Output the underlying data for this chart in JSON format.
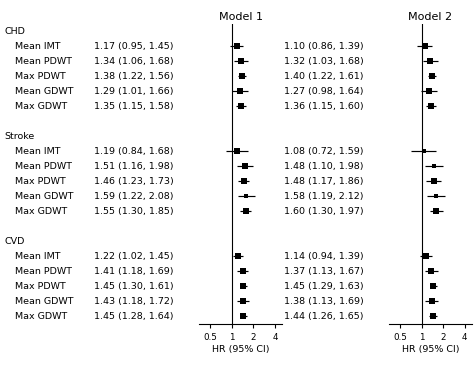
{
  "title_model1": "Model 1",
  "title_model2": "Model 2",
  "groups": [
    "CHD",
    "Stroke",
    "CVD"
  ],
  "row_labels": [
    "Mean IMT",
    "Mean PDWT",
    "Max PDWT",
    "Mean GDWT",
    "Max GDWT"
  ],
  "model1": {
    "CHD": {
      "Mean IMT": {
        "hr": 1.17,
        "lo": 0.95,
        "hi": 1.45,
        "label": "1.17 (0.95, 1.45)"
      },
      "Mean PDWT": {
        "hr": 1.34,
        "lo": 1.06,
        "hi": 1.68,
        "label": "1.34 (1.06, 1.68)"
      },
      "Max PDWT": {
        "hr": 1.38,
        "lo": 1.22,
        "hi": 1.56,
        "label": "1.38 (1.22, 1.56)"
      },
      "Mean GDWT": {
        "hr": 1.29,
        "lo": 1.01,
        "hi": 1.66,
        "label": "1.29 (1.01, 1.66)"
      },
      "Max GDWT": {
        "hr": 1.35,
        "lo": 1.15,
        "hi": 1.58,
        "label": "1.35 (1.15, 1.58)"
      }
    },
    "Stroke": {
      "Mean IMT": {
        "hr": 1.19,
        "lo": 0.84,
        "hi": 1.68,
        "label": "1.19 (0.84, 1.68)"
      },
      "Mean PDWT": {
        "hr": 1.51,
        "lo": 1.16,
        "hi": 1.98,
        "label": "1.51 (1.16, 1.98)"
      },
      "Max PDWT": {
        "hr": 1.46,
        "lo": 1.23,
        "hi": 1.73,
        "label": "1.46 (1.23, 1.73)"
      },
      "Mean GDWT": {
        "hr": 1.59,
        "lo": 1.22,
        "hi": 2.08,
        "label": "1.59 (1.22, 2.08)"
      },
      "Max GDWT": {
        "hr": 1.55,
        "lo": 1.3,
        "hi": 1.85,
        "label": "1.55 (1.30, 1.85)"
      }
    },
    "CVD": {
      "Mean IMT": {
        "hr": 1.22,
        "lo": 1.02,
        "hi": 1.45,
        "label": "1.22 (1.02, 1.45)"
      },
      "Mean PDWT": {
        "hr": 1.41,
        "lo": 1.18,
        "hi": 1.69,
        "label": "1.41 (1.18, 1.69)"
      },
      "Max PDWT": {
        "hr": 1.45,
        "lo": 1.3,
        "hi": 1.61,
        "label": "1.45 (1.30, 1.61)"
      },
      "Mean GDWT": {
        "hr": 1.43,
        "lo": 1.18,
        "hi": 1.72,
        "label": "1.43 (1.18, 1.72)"
      },
      "Max GDWT": {
        "hr": 1.45,
        "lo": 1.28,
        "hi": 1.64,
        "label": "1.45 (1.28, 1.64)"
      }
    }
  },
  "model2": {
    "CHD": {
      "Mean IMT": {
        "hr": 1.1,
        "lo": 0.86,
        "hi": 1.39,
        "label": "1.10 (0.86, 1.39)"
      },
      "Mean PDWT": {
        "hr": 1.32,
        "lo": 1.03,
        "hi": 1.68,
        "label": "1.32 (1.03, 1.68)"
      },
      "Max PDWT": {
        "hr": 1.4,
        "lo": 1.22,
        "hi": 1.61,
        "label": "1.40 (1.22, 1.61)"
      },
      "Mean GDWT": {
        "hr": 1.27,
        "lo": 0.98,
        "hi": 1.64,
        "label": "1.27 (0.98, 1.64)"
      },
      "Max GDWT": {
        "hr": 1.36,
        "lo": 1.15,
        "hi": 1.6,
        "label": "1.36 (1.15, 1.60)"
      }
    },
    "Stroke": {
      "Mean IMT": {
        "hr": 1.08,
        "lo": 0.72,
        "hi": 1.59,
        "label": "1.08 (0.72, 1.59)"
      },
      "Mean PDWT": {
        "hr": 1.48,
        "lo": 1.1,
        "hi": 1.98,
        "label": "1.48 (1.10, 1.98)"
      },
      "Max PDWT": {
        "hr": 1.48,
        "lo": 1.17,
        "hi": 1.86,
        "label": "1.48 (1.17, 1.86)"
      },
      "Mean GDWT": {
        "hr": 1.58,
        "lo": 1.19,
        "hi": 2.12,
        "label": "1.58 (1.19, 2.12)"
      },
      "Max GDWT": {
        "hr": 1.6,
        "lo": 1.3,
        "hi": 1.97,
        "label": "1.60 (1.30, 1.97)"
      }
    },
    "CVD": {
      "Mean IMT": {
        "hr": 1.14,
        "lo": 0.94,
        "hi": 1.39,
        "label": "1.14 (0.94, 1.39)"
      },
      "Mean PDWT": {
        "hr": 1.37,
        "lo": 1.13,
        "hi": 1.67,
        "label": "1.37 (1.13, 1.67)"
      },
      "Max PDWT": {
        "hr": 1.45,
        "lo": 1.29,
        "hi": 1.63,
        "label": "1.45 (1.29, 1.63)"
      },
      "Mean GDWT": {
        "hr": 1.38,
        "lo": 1.13,
        "hi": 1.69,
        "label": "1.38 (1.13, 1.69)"
      },
      "Max GDWT": {
        "hr": 1.44,
        "lo": 1.26,
        "hi": 1.65,
        "label": "1.44 (1.26, 1.65)"
      }
    }
  },
  "xlabel": "HR (95% CI)",
  "xticks": [
    0.5,
    1,
    2,
    4
  ],
  "xticklabels": [
    "0.5",
    "1",
    "2",
    "4"
  ],
  "xmin": 0.35,
  "xmax": 5.0,
  "ref_line": 1.0,
  "bg": "#ffffff",
  "fg": "#000000",
  "fontsize": 6.8,
  "title_fontsize": 8.0,
  "marker_size": 4.5,
  "lw": 0.85,
  "n_total_slots": 20,
  "slots_per_group": 6,
  "blank_slot_after_group": true
}
